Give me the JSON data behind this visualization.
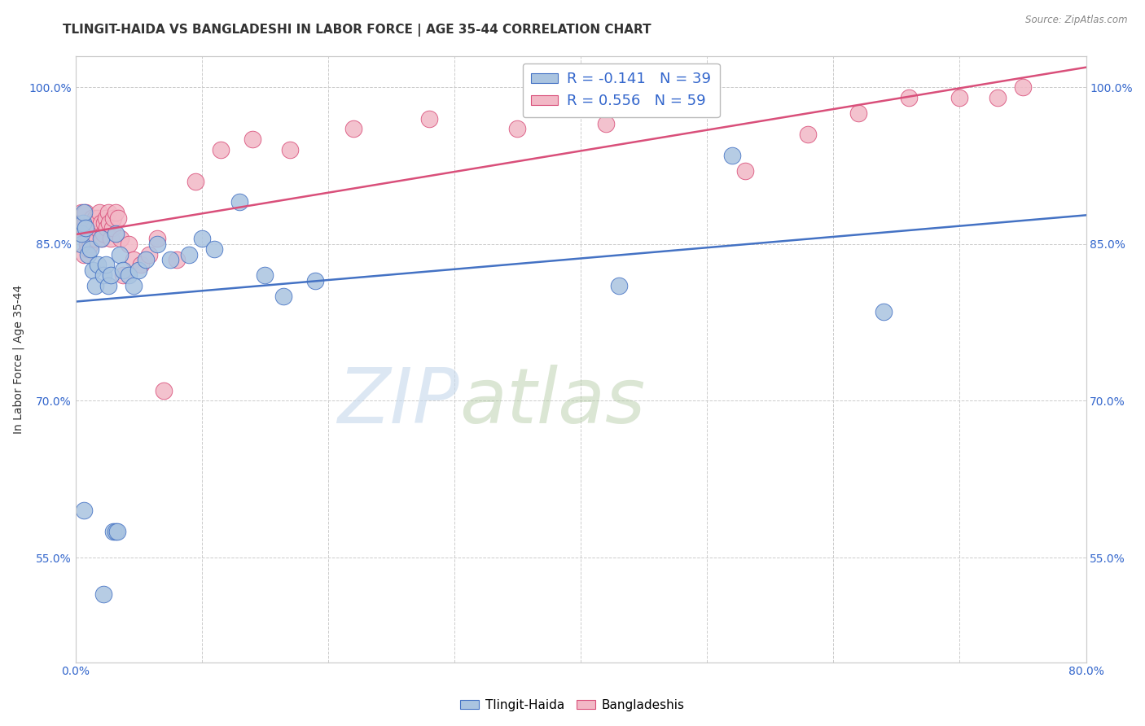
{
  "title": "TLINGIT-HAIDA VS BANGLADESHI IN LABOR FORCE | AGE 35-44 CORRELATION CHART",
  "source": "Source: ZipAtlas.com",
  "ylabel": "In Labor Force | Age 35-44",
  "xlim": [
    0.0,
    0.8
  ],
  "ylim": [
    0.45,
    1.03
  ],
  "yticks": [
    0.55,
    0.7,
    0.85,
    1.0
  ],
  "ytick_labels": [
    "55.0%",
    "70.0%",
    "85.0%",
    "100.0%"
  ],
  "xticks": [
    0.0,
    0.1,
    0.2,
    0.3,
    0.4,
    0.5,
    0.6,
    0.7,
    0.8
  ],
  "xtick_labels": [
    "0.0%",
    "",
    "",
    "",
    "",
    "",
    "",
    "",
    "80.0%"
  ],
  "legend_blue_r": "R = -0.141",
  "legend_blue_n": "N = 39",
  "legend_pink_r": "R = 0.556",
  "legend_pink_n": "N = 59",
  "watermark_zip": "ZIP",
  "watermark_atlas": "atlas",
  "blue_fill": "#aac4e0",
  "blue_edge": "#4472c4",
  "pink_fill": "#f2b8c6",
  "pink_edge": "#d94f7a",
  "blue_line": "#4472c4",
  "pink_line": "#d94f7a",
  "background_color": "#ffffff",
  "grid_color": "#cccccc",
  "title_fontsize": 11,
  "axis_label_fontsize": 10,
  "tick_fontsize": 10,
  "tlingit_x": [
    0.007,
    0.022,
    0.03,
    0.032,
    0.033,
    0.005,
    0.005,
    0.006,
    0.007,
    0.008,
    0.01,
    0.012,
    0.014,
    0.016,
    0.018,
    0.02,
    0.022,
    0.024,
    0.026,
    0.028,
    0.032,
    0.035,
    0.038,
    0.042,
    0.046,
    0.05,
    0.056,
    0.065,
    0.075,
    0.09,
    0.1,
    0.11,
    0.13,
    0.15,
    0.165,
    0.19,
    0.43,
    0.52,
    0.64
  ],
  "tlingit_y": [
    0.595,
    0.515,
    0.575,
    0.575,
    0.575,
    0.85,
    0.86,
    0.87,
    0.88,
    0.865,
    0.84,
    0.845,
    0.825,
    0.81,
    0.83,
    0.855,
    0.82,
    0.83,
    0.81,
    0.82,
    0.86,
    0.84,
    0.825,
    0.82,
    0.81,
    0.825,
    0.835,
    0.85,
    0.835,
    0.84,
    0.855,
    0.845,
    0.89,
    0.82,
    0.8,
    0.815,
    0.81,
    0.935,
    0.785
  ],
  "bangladeshi_x": [
    0.005,
    0.005,
    0.005,
    0.007,
    0.007,
    0.008,
    0.008,
    0.009,
    0.01,
    0.01,
    0.011,
    0.012,
    0.013,
    0.013,
    0.014,
    0.015,
    0.016,
    0.016,
    0.017,
    0.018,
    0.019,
    0.02,
    0.021,
    0.022,
    0.023,
    0.024,
    0.025,
    0.026,
    0.027,
    0.028,
    0.029,
    0.03,
    0.032,
    0.034,
    0.036,
    0.038,
    0.042,
    0.046,
    0.052,
    0.058,
    0.065,
    0.07,
    0.08,
    0.095,
    0.115,
    0.14,
    0.17,
    0.22,
    0.28,
    0.35,
    0.42,
    0.48,
    0.53,
    0.58,
    0.62,
    0.66,
    0.7,
    0.73,
    0.75
  ],
  "bangladeshi_y": [
    0.86,
    0.87,
    0.88,
    0.84,
    0.865,
    0.87,
    0.88,
    0.85,
    0.845,
    0.86,
    0.87,
    0.85,
    0.86,
    0.875,
    0.855,
    0.865,
    0.875,
    0.855,
    0.865,
    0.875,
    0.88,
    0.87,
    0.855,
    0.86,
    0.87,
    0.875,
    0.865,
    0.88,
    0.87,
    0.855,
    0.865,
    0.875,
    0.88,
    0.875,
    0.855,
    0.82,
    0.85,
    0.835,
    0.83,
    0.84,
    0.855,
    0.71,
    0.835,
    0.91,
    0.94,
    0.95,
    0.94,
    0.96,
    0.97,
    0.96,
    0.965,
    0.98,
    0.92,
    0.955,
    0.975,
    0.99,
    0.99,
    0.99,
    1.0
  ]
}
